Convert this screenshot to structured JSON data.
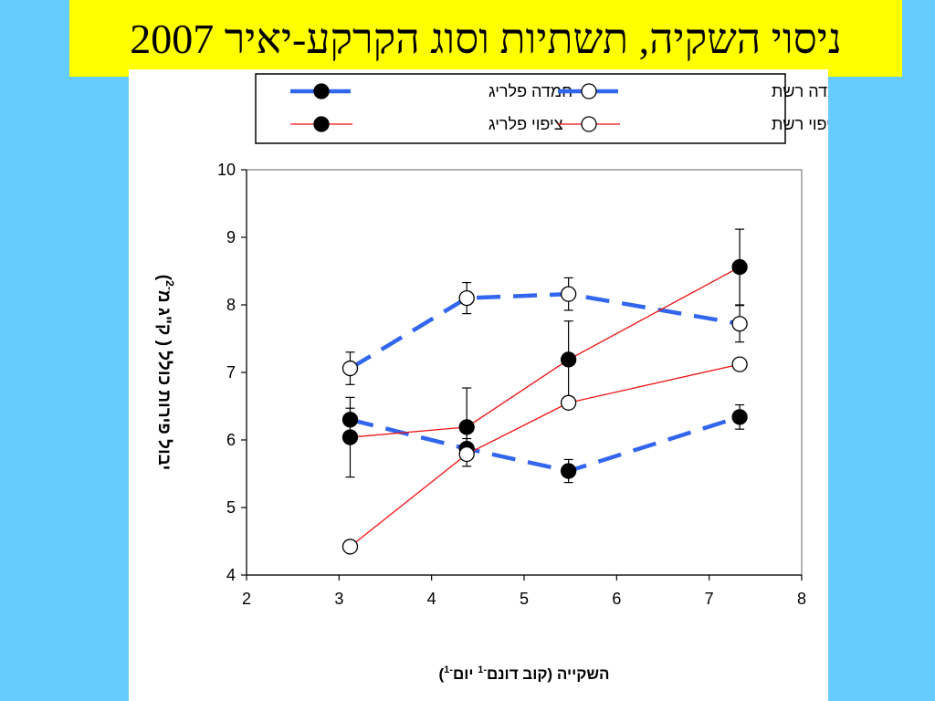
{
  "header": {
    "title": "ניסוי השקיה, תשתיות וסוג הקרקע-יאיר 2007"
  },
  "colors": {
    "background": "#66ccff",
    "title_bg": "#ffff00",
    "blue_series": "#3366ee",
    "red_series": "#ee1111"
  },
  "chart_data": {
    "type": "scatter",
    "xlabel_main": "השקייה  (קוב דונם",
    "xlabel_sup1": "-1",
    "xlabel_mid": " יום",
    "xlabel_sup2": "-1",
    "xlabel_close": ")",
    "ylabel_main": "יבול פירות כולל ( ק\"ג מ",
    "ylabel_sup": "-2",
    "ylabel_close": ")",
    "xlim": [
      2,
      8
    ],
    "ylim": [
      4,
      10
    ],
    "xticks": [
      "2",
      "3",
      "4",
      "5",
      "6",
      "7",
      "8"
    ],
    "yticks": [
      "4",
      "5",
      "6",
      "7",
      "8",
      "9",
      "10"
    ],
    "legend_position": "top",
    "series": [
      {
        "name": "חמדה פלריג",
        "style": "dashed",
        "color": "#3366ee",
        "marker": "filled",
        "x": [
          3.12,
          4.38,
          5.48,
          7.33
        ],
        "y": [
          6.3,
          5.87,
          5.54,
          6.34
        ],
        "err": [
          0.17,
          0.15,
          0.17,
          0.18
        ]
      },
      {
        "name": "חמדה רשת",
        "style": "dashed",
        "color": "#3366ee",
        "marker": "open",
        "x": [
          3.12,
          4.38,
          5.48,
          7.33
        ],
        "y": [
          7.06,
          8.1,
          8.16,
          7.72
        ],
        "err": [
          0.24,
          0.23,
          0.24,
          0.27
        ]
      },
      {
        "name": "ציפוי פלריג",
        "style": "solid",
        "color": "#ee1111",
        "marker": "filled",
        "x": [
          3.12,
          4.38,
          5.48,
          7.33
        ],
        "y": [
          6.04,
          6.19,
          7.19,
          8.56
        ],
        "err": [
          0.59,
          0.58,
          0.57,
          0.56
        ]
      },
      {
        "name": "ציפוי רשת",
        "style": "solid",
        "color": "#ee1111",
        "marker": "open",
        "x": [
          3.12,
          4.38,
          5.48,
          7.33
        ],
        "y": [
          4.42,
          5.79,
          6.55,
          7.12
        ],
        "err": [
          0,
          0,
          0,
          0
        ]
      }
    ]
  }
}
